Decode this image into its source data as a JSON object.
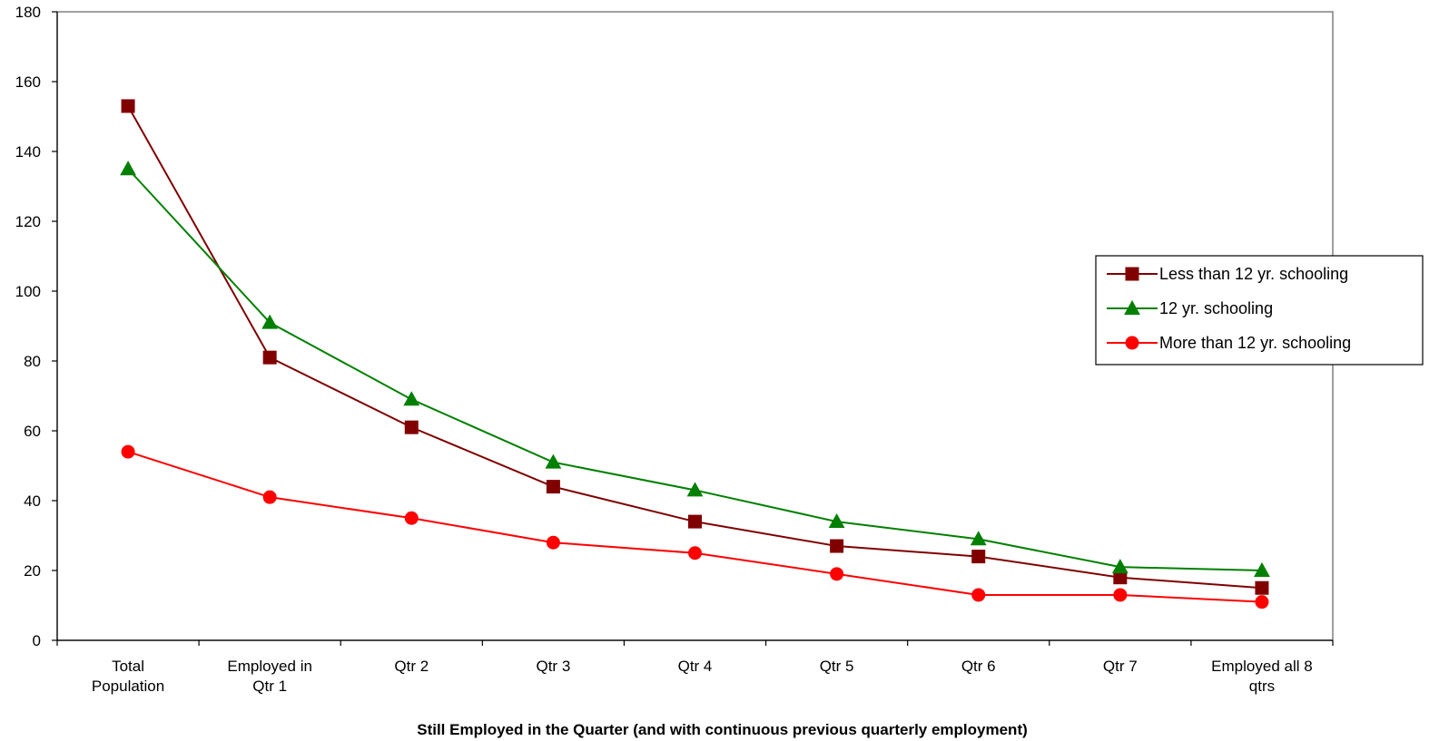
{
  "chart_data": {
    "type": "line",
    "title": "",
    "xlabel": "Still Employed in the Quarter (and with continuous previous quarterly employment)",
    "ylabel": "",
    "ylim": [
      0,
      180
    ],
    "yticks": [
      0,
      20,
      40,
      60,
      80,
      100,
      120,
      140,
      160,
      180
    ],
    "categories": [
      [
        "Total",
        "Population"
      ],
      [
        "Employed in",
        "Qtr 1"
      ],
      [
        "Qtr 2"
      ],
      [
        "Qtr 3"
      ],
      [
        "Qtr 4"
      ],
      [
        "Qtr 5"
      ],
      [
        "Qtr 6"
      ],
      [
        "Qtr 7"
      ],
      [
        "Employed all 8",
        "qtrs"
      ]
    ],
    "grid": false,
    "legend_position": "right",
    "series": [
      {
        "name": "Less than 12 yr. schooling",
        "color": "#800000",
        "marker": "square",
        "values": [
          153,
          81,
          61,
          44,
          34,
          27,
          24,
          18,
          15
        ]
      },
      {
        "name": "12 yr. schooling",
        "color": "#008000",
        "marker": "triangle",
        "values": [
          135,
          91,
          69,
          51,
          43,
          34,
          29,
          21,
          20
        ]
      },
      {
        "name": "More than 12 yr. schooling",
        "color": "#ff0000",
        "marker": "circle",
        "values": [
          54,
          41,
          35,
          28,
          25,
          19,
          13,
          13,
          11
        ]
      }
    ]
  }
}
